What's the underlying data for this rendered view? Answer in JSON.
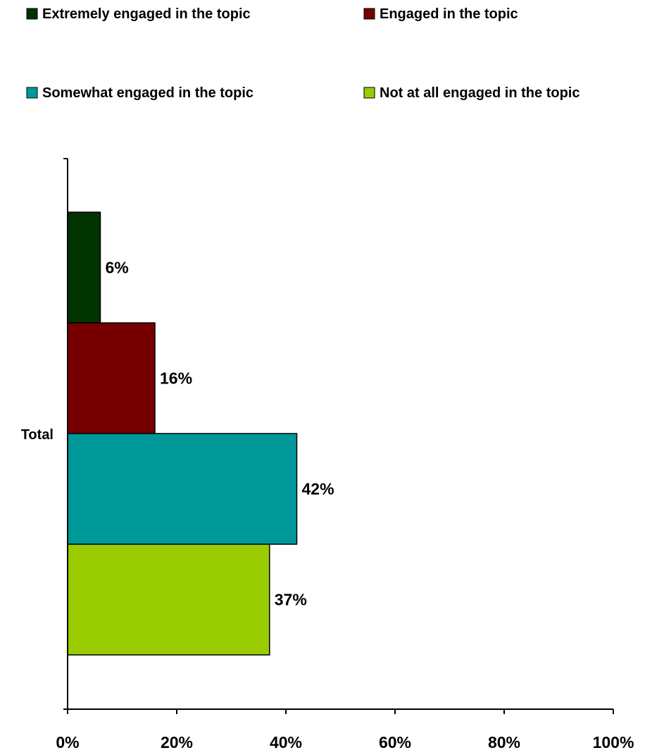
{
  "chart_data": {
    "type": "bar",
    "orientation": "horizontal",
    "categories": [
      "Total"
    ],
    "series": [
      {
        "name": "Extremely engaged in the topic",
        "values": [
          6
        ],
        "label": "6%",
        "color": "#003300"
      },
      {
        "name": "Engaged in the topic",
        "values": [
          16
        ],
        "label": "16%",
        "color": "#760000"
      },
      {
        "name": "Somewhat engaged in the topic",
        "values": [
          42
        ],
        "label": "42%",
        "color": "#009999"
      },
      {
        "name": "Not at all engaged in the topic",
        "values": [
          37
        ],
        "label": "37%",
        "color": "#99CC00"
      }
    ],
    "xlim": [
      0,
      100
    ],
    "xticks": [
      0,
      20,
      40,
      60,
      80,
      100
    ],
    "xtick_labels": [
      "0%",
      "20%",
      "40%",
      "60%",
      "80%",
      "100%"
    ],
    "grid": false,
    "legend_position": "top"
  }
}
